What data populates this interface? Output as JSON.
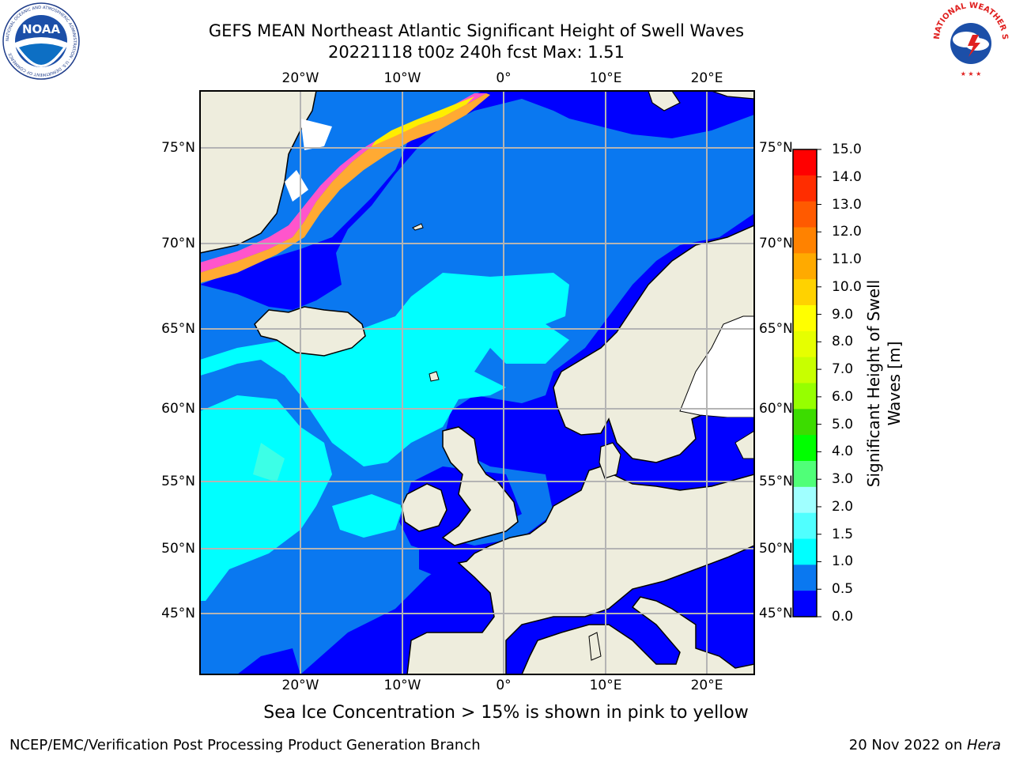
{
  "title_line1": "GEFS MEAN Northeast Atlantic Significant Height of Swell Waves",
  "title_line2": "20221118 t00z 240h fcst   Max: 1.51",
  "logos": {
    "left": "noaa-logo",
    "left_ring_text": "NATIONAL OCEANIC AND ATMOSPHERIC ADMINISTRATION · U.S. DEPARTMENT OF COMMERCE",
    "left_center_text": "NOAA",
    "right": "national-weather-service-logo",
    "right_ring_text": "NATIONAL WEATHER SERVICE"
  },
  "map": {
    "lon_ticks": [
      "20°W",
      "10°W",
      "0°",
      "10°E",
      "20°E"
    ],
    "lat_ticks": [
      "75°N",
      "70°N",
      "65°N",
      "60°N",
      "55°N",
      "50°N",
      "45°N"
    ],
    "colors": {
      "ocean_0_0_5": "#0000ff",
      "ocean_0_5_1_0": "#0a78f0",
      "ocean_1_0_1_5": "#00ffff",
      "ocean_1_5_2_0": "#3cffe6",
      "land": "#eeeddd",
      "ice": "#ff55cc",
      "coast": "#000000",
      "grid": "#b4b4b4"
    }
  },
  "colorbar": {
    "title": "Significant Height of Swell Waves [m]",
    "title_line1": "Significant Height of Swell",
    "title_line2": "Waves [m]",
    "labels": [
      "15.0",
      "14.0",
      "13.0",
      "12.0",
      "11.0",
      "10.0",
      "9.0",
      "8.0",
      "7.0",
      "6.0",
      "5.0",
      "4.0",
      "3.0",
      "2.0",
      "1.5",
      "1.0",
      "0.5",
      "0.0"
    ],
    "colors_top_to_bottom": [
      "#ff0000",
      "#ff2d00",
      "#ff5a00",
      "#ff8200",
      "#ffaa00",
      "#ffd200",
      "#ffff00",
      "#e6ff00",
      "#c8ff00",
      "#96ff00",
      "#3cdc00",
      "#00ff00",
      "#50ff78",
      "#a0ffff",
      "#50ffff",
      "#00ffff",
      "#0a78f0",
      "#0000ff"
    ]
  },
  "ice_note": "Sea Ice Concentration > 15% is shown in pink to yellow",
  "footer_left": "NCEP/EMC/Verification Post Processing Product Generation Branch",
  "footer_date": "20 Nov 2022 on ",
  "footer_machine": "Hera"
}
